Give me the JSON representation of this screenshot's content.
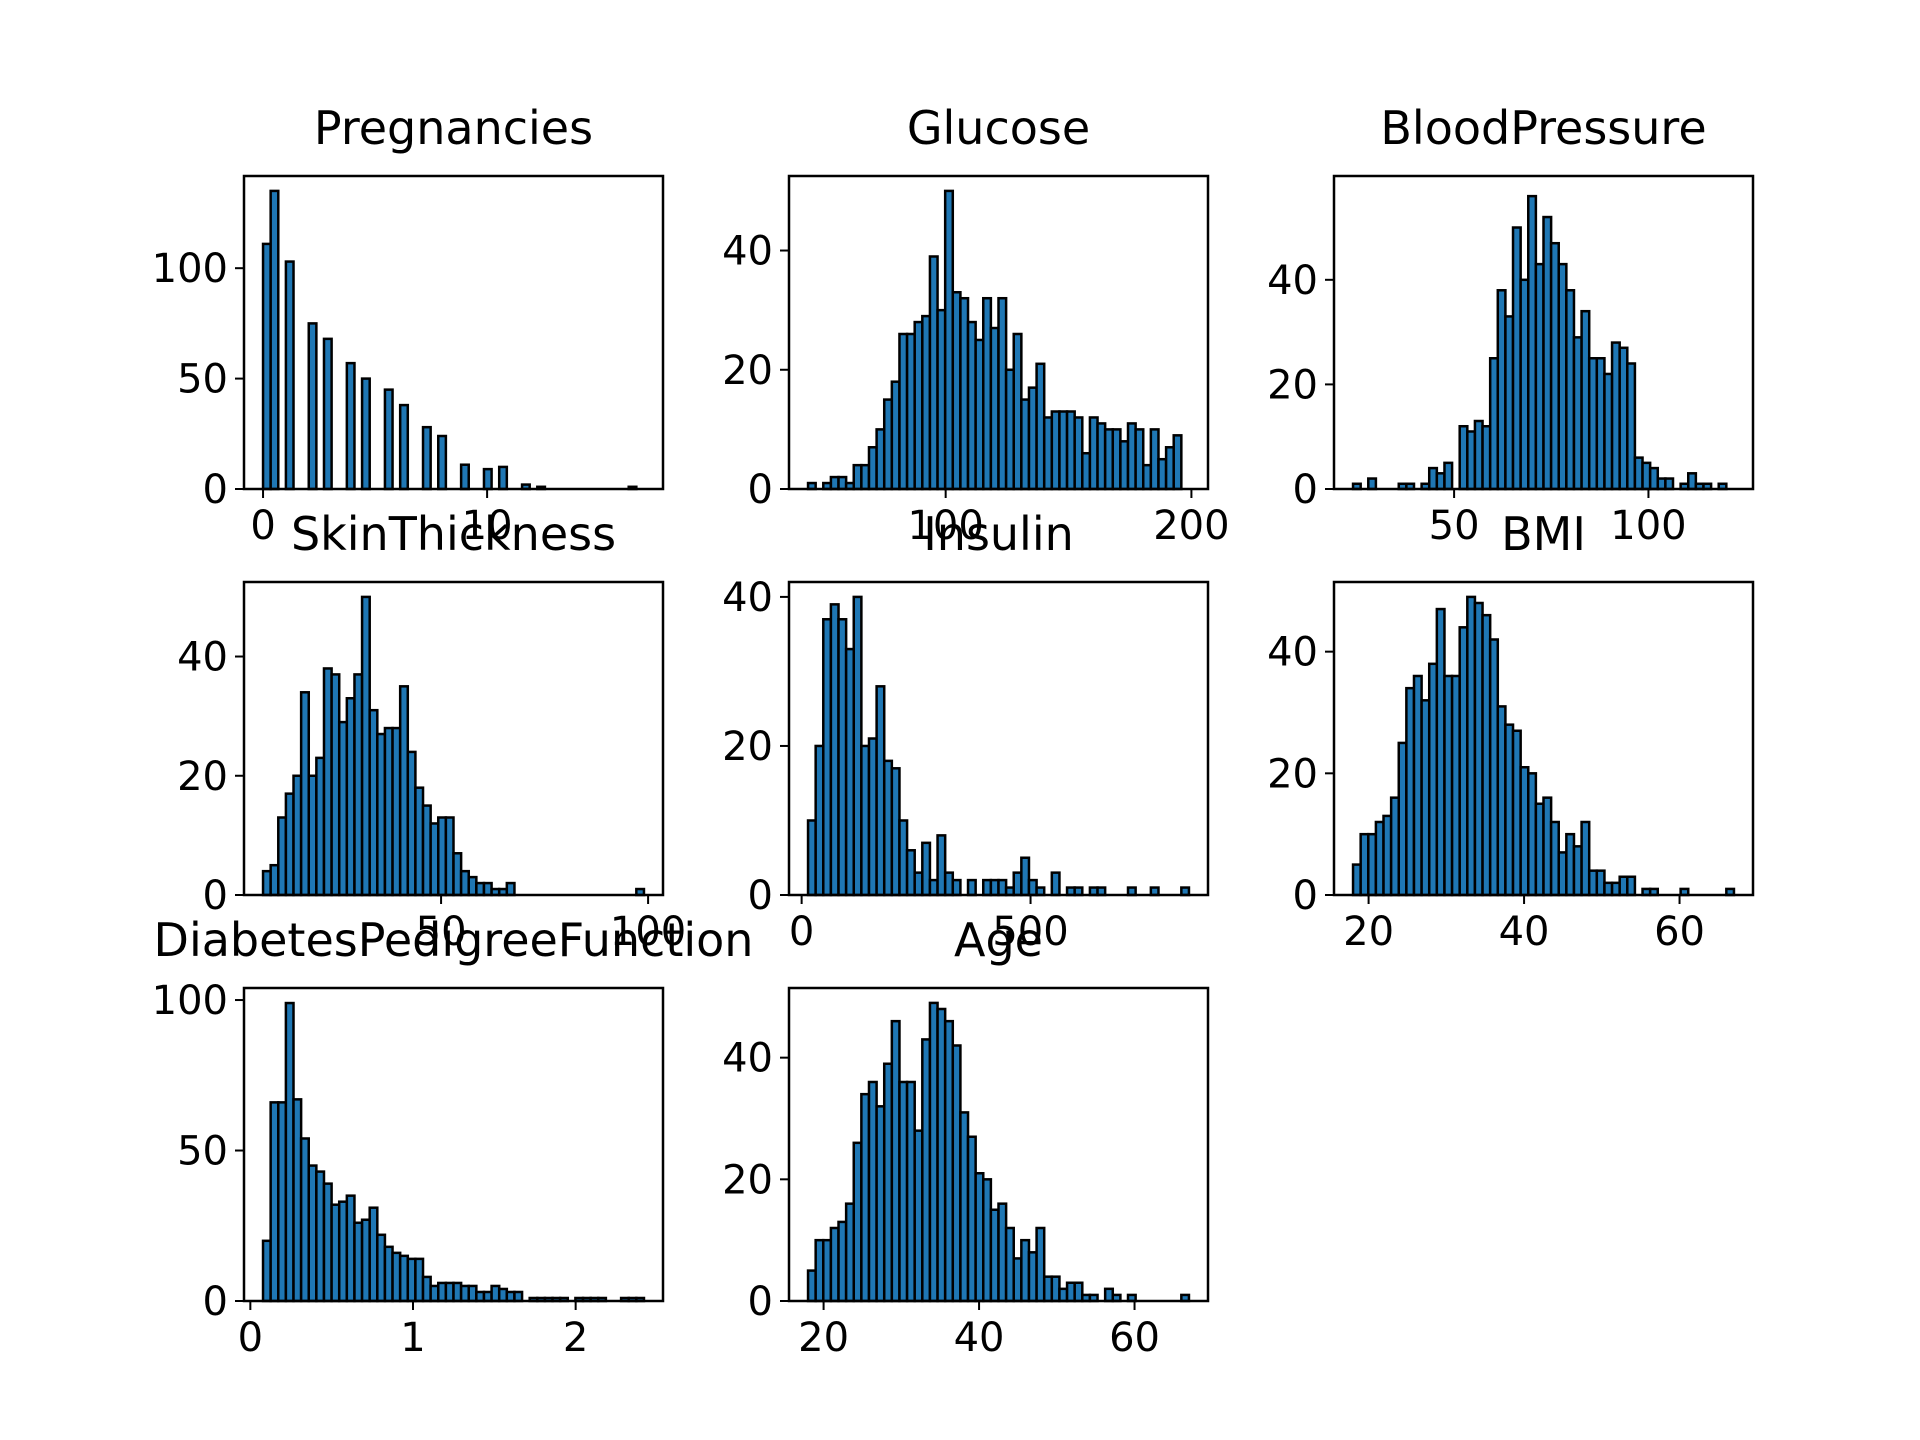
{
  "colors": {
    "bar_fill": "#1f77b4",
    "bar_edge": "#000000",
    "background": "#ffffff"
  },
  "chart_data": [
    {
      "type": "bar",
      "title": "Pregnancies",
      "bins": [
        0,
        17
      ],
      "counts": [
        111,
        135,
        0,
        103,
        0,
        0,
        75,
        0,
        68,
        0,
        0,
        57,
        0,
        50,
        0,
        0,
        45,
        0,
        38,
        0,
        0,
        28,
        0,
        24,
        0,
        0,
        11,
        0,
        0,
        9,
        0,
        10,
        0,
        0,
        2,
        0,
        1,
        0,
        0,
        0,
        0,
        0,
        0,
        0,
        0,
        0,
        0,
        0,
        1,
        0
      ],
      "xlim": [
        -0.85,
        17.85
      ],
      "ylim": [
        0,
        141.75
      ],
      "xticks": [
        0,
        10
      ],
      "yticks": [
        0,
        50,
        100
      ],
      "xtick_labels": [
        "0",
        "10"
      ],
      "ytick_labels": [
        "0",
        "50",
        "100"
      ]
    },
    {
      "type": "bar",
      "title": "Glucose",
      "bins": [
        44,
        199
      ],
      "counts": [
        1,
        0,
        1,
        2,
        2,
        1,
        4,
        4,
        7,
        10,
        15,
        18,
        26,
        26,
        28,
        29,
        39,
        30,
        50,
        33,
        32,
        28,
        25,
        32,
        27,
        32,
        20,
        26,
        15,
        17,
        21,
        12,
        13,
        13,
        13,
        12,
        6,
        12,
        11,
        10,
        10,
        8,
        11,
        10,
        4,
        10,
        5,
        7,
        9,
        0
      ],
      "xlim": [
        36.25,
        206.75
      ],
      "ylim": [
        0,
        52.5
      ],
      "xticks": [
        100,
        200
      ],
      "yticks": [
        0,
        20,
        40
      ],
      "xtick_labels": [
        "100",
        "200"
      ],
      "ytick_labels": [
        "0",
        "20",
        "40"
      ]
    },
    {
      "type": "bar",
      "title": "BloodPressure",
      "bins": [
        24,
        122
      ],
      "counts": [
        1,
        0,
        2,
        0,
        0,
        0,
        1,
        1,
        0,
        1,
        4,
        3,
        5,
        0,
        12,
        11,
        13,
        12,
        25,
        38,
        33,
        50,
        40,
        56,
        43,
        52,
        47,
        43,
        38,
        29,
        34,
        25,
        25,
        22,
        28,
        27,
        24,
        6,
        5,
        4,
        2,
        2,
        0,
        1,
        3,
        1,
        1,
        0,
        1,
        0
      ],
      "xlim": [
        19.1,
        126.9
      ],
      "ylim": [
        0,
        59.85
      ],
      "xticks": [
        50,
        100
      ],
      "yticks": [
        0,
        20,
        40
      ],
      "xtick_labels": [
        "50",
        "100"
      ],
      "ytick_labels": [
        "0",
        "20",
        "40"
      ]
    },
    {
      "type": "bar",
      "title": "SkinThickness",
      "bins": [
        7,
        99
      ],
      "counts": [
        4,
        5,
        13,
        17,
        20,
        34,
        20,
        23,
        38,
        37,
        29,
        33,
        37,
        50,
        31,
        27,
        28,
        28,
        35,
        24,
        18,
        15,
        12,
        13,
        13,
        7,
        4,
        3,
        2,
        2,
        1,
        1,
        2,
        0,
        0,
        0,
        0,
        0,
        0,
        0,
        0,
        0,
        0,
        0,
        0,
        0,
        0,
        0,
        0,
        1
      ],
      "xlim": [
        2.4,
        103.6
      ],
      "ylim": [
        0,
        52.5
      ],
      "xticks": [
        50,
        100
      ],
      "yticks": [
        0,
        20,
        40
      ],
      "xtick_labels": [
        "50",
        "100"
      ],
      "ytick_labels": [
        "0",
        "20",
        "40"
      ]
    },
    {
      "type": "bar",
      "title": "Insulin",
      "bins": [
        14,
        846
      ],
      "counts": [
        10,
        20,
        37,
        39,
        37,
        33,
        40,
        20,
        21,
        28,
        18,
        17,
        10,
        6,
        3,
        7,
        2,
        8,
        3,
        2,
        0,
        2,
        0,
        2,
        2,
        2,
        1,
        3,
        5,
        2,
        1,
        0,
        3,
        0,
        1,
        1,
        0,
        1,
        1,
        0,
        0,
        0,
        1,
        0,
        0,
        1,
        0,
        0,
        0,
        1
      ],
      "xlim": [
        -27.6,
        887.6
      ],
      "ylim": [
        0,
        42.0
      ],
      "xticks": [
        0,
        500
      ],
      "yticks": [
        0,
        20,
        40
      ],
      "xtick_labels": [
        "0",
        "500"
      ],
      "ytick_labels": [
        "0",
        "20",
        "40"
      ]
    },
    {
      "type": "bar",
      "title": "BMI",
      "bins": [
        18,
        67
      ],
      "counts": [
        5,
        10,
        10,
        12,
        13,
        16,
        25,
        34,
        36,
        32,
        38,
        47,
        36,
        36,
        44,
        49,
        48,
        46,
        42,
        31,
        28,
        27,
        21,
        20,
        15,
        16,
        12,
        7,
        10,
        8,
        12,
        4,
        4,
        2,
        2,
        3,
        3,
        0,
        1,
        1,
        0,
        0,
        0,
        1,
        0,
        0,
        0,
        0,
        0,
        1
      ],
      "xlim": [
        15.55,
        69.45
      ],
      "ylim": [
        0,
        51.45
      ],
      "xticks": [
        20,
        40,
        60
      ],
      "yticks": [
        0,
        20,
        40
      ],
      "xtick_labels": [
        "20",
        "40",
        "60"
      ],
      "ytick_labels": [
        "0",
        "20",
        "40"
      ]
    },
    {
      "type": "bar",
      "title": "DiabetesPedigreeFunction",
      "bins": [
        0.078,
        2.42
      ],
      "counts": [
        20,
        66,
        66,
        99,
        67,
        54,
        45,
        43,
        39,
        32,
        33,
        35,
        26,
        27,
        31,
        22,
        18,
        16,
        15,
        14,
        14,
        8,
        5,
        6,
        6,
        6,
        5,
        5,
        3,
        3,
        5,
        4,
        3,
        3,
        0,
        1,
        1,
        1,
        1,
        1,
        0,
        1,
        1,
        1,
        1,
        0,
        0,
        1,
        1,
        1
      ],
      "xlim": [
        -0.039,
        2.537
      ],
      "ylim": [
        0,
        104
      ],
      "xticks": [
        0,
        1,
        2
      ],
      "yticks": [
        0,
        50,
        100
      ],
      "xtick_labels": [
        "0",
        "1",
        "2"
      ],
      "ytick_labels": [
        "0",
        "50",
        "100"
      ]
    },
    {
      "type": "bar",
      "title": "Age",
      "bins": [
        18,
        67
      ],
      "counts": [
        5,
        10,
        10,
        12,
        13,
        16,
        26,
        34,
        36,
        32,
        39,
        46,
        36,
        36,
        28,
        43,
        49,
        48,
        46,
        42,
        31,
        27,
        21,
        20,
        15,
        16,
        12,
        7,
        10,
        8,
        12,
        4,
        4,
        2,
        3,
        3,
        1,
        1,
        0,
        2,
        1,
        0,
        1,
        0,
        0,
        0,
        0,
        0,
        0,
        1
      ],
      "xlim": [
        15.55,
        69.45
      ],
      "ylim": [
        0,
        51.45
      ],
      "xticks": [
        20,
        40,
        60
      ],
      "yticks": [
        0,
        20,
        40
      ],
      "xtick_labels": [
        "20",
        "40",
        "60"
      ],
      "ytick_labels": [
        "0",
        "20",
        "40"
      ]
    }
  ]
}
